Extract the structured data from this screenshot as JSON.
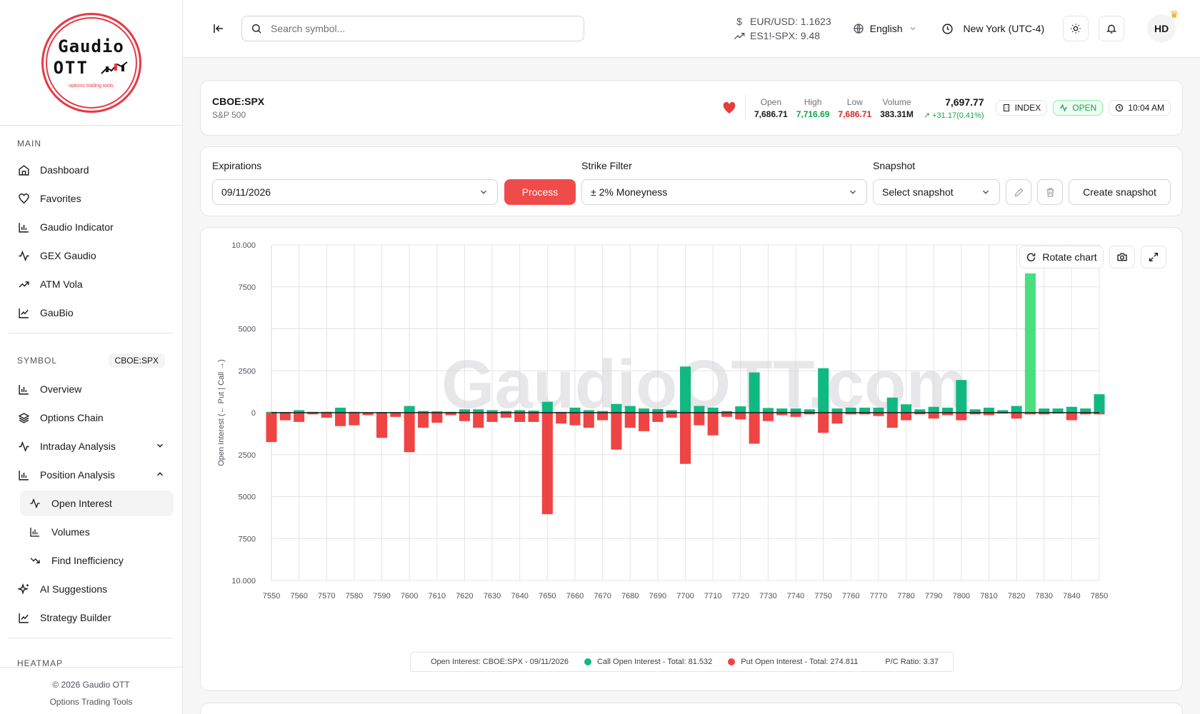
{
  "sidebar": {
    "logo": {
      "line1": "Gaudio",
      "line2": "OTT",
      "tagline": "options trading tools"
    },
    "main_title": "MAIN",
    "main_items": [
      {
        "label": "Dashboard",
        "icon": "home-icon"
      },
      {
        "label": "Favorites",
        "icon": "heart-icon"
      },
      {
        "label": "Gaudio Indicator",
        "icon": "chart-bar-icon"
      },
      {
        "label": "GEX Gaudio",
        "icon": "activity-icon"
      },
      {
        "label": "ATM Vola",
        "icon": "trend-icon"
      },
      {
        "label": "GauBio",
        "icon": "chart-line-icon"
      }
    ],
    "symbol_title": "SYMBOL",
    "symbol_badge": "CBOE:SPX",
    "symbol_items": [
      {
        "label": "Overview"
      },
      {
        "label": "Options Chain"
      },
      {
        "label": "Intraday Analysis"
      },
      {
        "label": "Position Analysis"
      },
      {
        "label": "Open Interest"
      },
      {
        "label": "Volumes"
      },
      {
        "label": "Find Inefficiency"
      },
      {
        "label": "AI Suggestions"
      },
      {
        "label": "Strategy Builder"
      }
    ],
    "heatmap_title": "HEATMAP",
    "footer_line1": "© 2026 Gaudio OTT",
    "footer_line2": "Options Trading Tools"
  },
  "topbar": {
    "search_placeholder": "Search symbol...",
    "quote1": "EUR/USD: 1.1623",
    "quote2": "ES1!-SPX: 9.48",
    "language": "English",
    "timezone": "New York (UTC-4)",
    "avatar": "HD"
  },
  "symbol": {
    "ticker": "CBOE:SPX",
    "name": "S&P 500",
    "open_label": "Open",
    "open": "7,686.71",
    "high_label": "High",
    "high": "7,716.69",
    "low_label": "Low",
    "low": "7,686.71",
    "volume_label": "Volume",
    "volume": "383.31M",
    "price": "7,697.77",
    "change": "+31.17(0.41%)",
    "type_pill": "INDEX",
    "status_pill": "OPEN",
    "time_pill": "10:04 AM"
  },
  "controls": {
    "expirations_label": "Expirations",
    "expiration_value": "09/11/2026",
    "process_label": "Process",
    "strike_filter_label": "Strike Filter",
    "strike_filter_value": "± 2% Moneyness",
    "snapshot_label": "Snapshot",
    "snapshot_value": "Select snapshot",
    "create_snapshot_label": "Create snapshot"
  },
  "chart_tools": {
    "rotate_label": "Rotate chart"
  },
  "colors": {
    "call": "#10b981",
    "call_highlight": "#4ade80",
    "put": "#ef4444",
    "accent": "#f04b4b"
  },
  "chart_data": {
    "type": "bar",
    "watermark": "GaudioOTT.com",
    "ylabel": "Open Interest (← Put | Call →)",
    "ylim": [
      -10000,
      10000
    ],
    "y_ticks": [
      10000,
      7500,
      5000,
      2500,
      0,
      -2500,
      -5000,
      -7500,
      -10000
    ],
    "y_tick_labels": [
      "10.000",
      "7500",
      "5000",
      "2500",
      "0",
      "2500",
      "5000",
      "7500",
      "10.000"
    ],
    "x_ticks": [
      "7550",
      "7560",
      "7570",
      "7580",
      "7590",
      "7600",
      "7610",
      "7620",
      "7630",
      "7640",
      "7650",
      "7660",
      "7670",
      "7680",
      "7690",
      "7700",
      "7710",
      "7720",
      "7730",
      "7740",
      "7750",
      "7760",
      "7770",
      "7780",
      "7790",
      "7800",
      "7810",
      "7820",
      "7830",
      "7840",
      "7850"
    ],
    "strikes": [
      7550,
      7555,
      7560,
      7565,
      7570,
      7575,
      7580,
      7585,
      7590,
      7595,
      7600,
      7605,
      7610,
      7615,
      7620,
      7625,
      7630,
      7635,
      7640,
      7645,
      7650,
      7655,
      7660,
      7665,
      7670,
      7675,
      7680,
      7685,
      7690,
      7695,
      7700,
      7705,
      7710,
      7715,
      7720,
      7725,
      7730,
      7735,
      7740,
      7745,
      7750,
      7755,
      7760,
      7765,
      7770,
      7775,
      7780,
      7785,
      7790,
      7795,
      7800,
      7805,
      7810,
      7815,
      7820,
      7825,
      7830,
      7835,
      7840,
      7845,
      7850
    ],
    "series": [
      {
        "name": "Call Open Interest",
        "values": [
          50,
          40,
          150,
          50,
          50,
          300,
          50,
          30,
          40,
          40,
          400,
          100,
          80,
          50,
          200,
          200,
          150,
          100,
          150,
          120,
          650,
          50,
          300,
          150,
          100,
          520,
          400,
          250,
          220,
          150,
          2750,
          400,
          300,
          100,
          380,
          2400,
          280,
          250,
          250,
          200,
          2650,
          250,
          300,
          300,
          300,
          900,
          500,
          200,
          350,
          300,
          1950,
          200,
          300,
          150,
          400,
          8300,
          250,
          250,
          350,
          250,
          1100
        ]
      },
      {
        "name": "Put Open Interest",
        "values": [
          -1750,
          -450,
          -550,
          -100,
          -300,
          -800,
          -750,
          -150,
          -1500,
          -250,
          -2350,
          -900,
          -600,
          -150,
          -500,
          -900,
          -550,
          -300,
          -550,
          -550,
          -6050,
          -650,
          -750,
          -900,
          -450,
          -2200,
          -900,
          -1100,
          -550,
          -300,
          -3050,
          -750,
          -1350,
          -250,
          -400,
          -1850,
          -500,
          -150,
          -250,
          -100,
          -1200,
          -650,
          -100,
          -100,
          -200,
          -900,
          -450,
          -100,
          -350,
          -150,
          -450,
          -100,
          -150,
          -50,
          -350,
          -100,
          -100,
          -50,
          -450,
          -100,
          -100
        ]
      }
    ],
    "legend_title": "Open Interest: CBOE:SPX - 09/11/2026",
    "legend_call": "Call Open Interest - Total: 81.532",
    "legend_put": "Put Open Interest - Total: 274.811",
    "legend_ratio": "P/C Ratio: 3.37",
    "legend_placement": "bottom-center"
  }
}
